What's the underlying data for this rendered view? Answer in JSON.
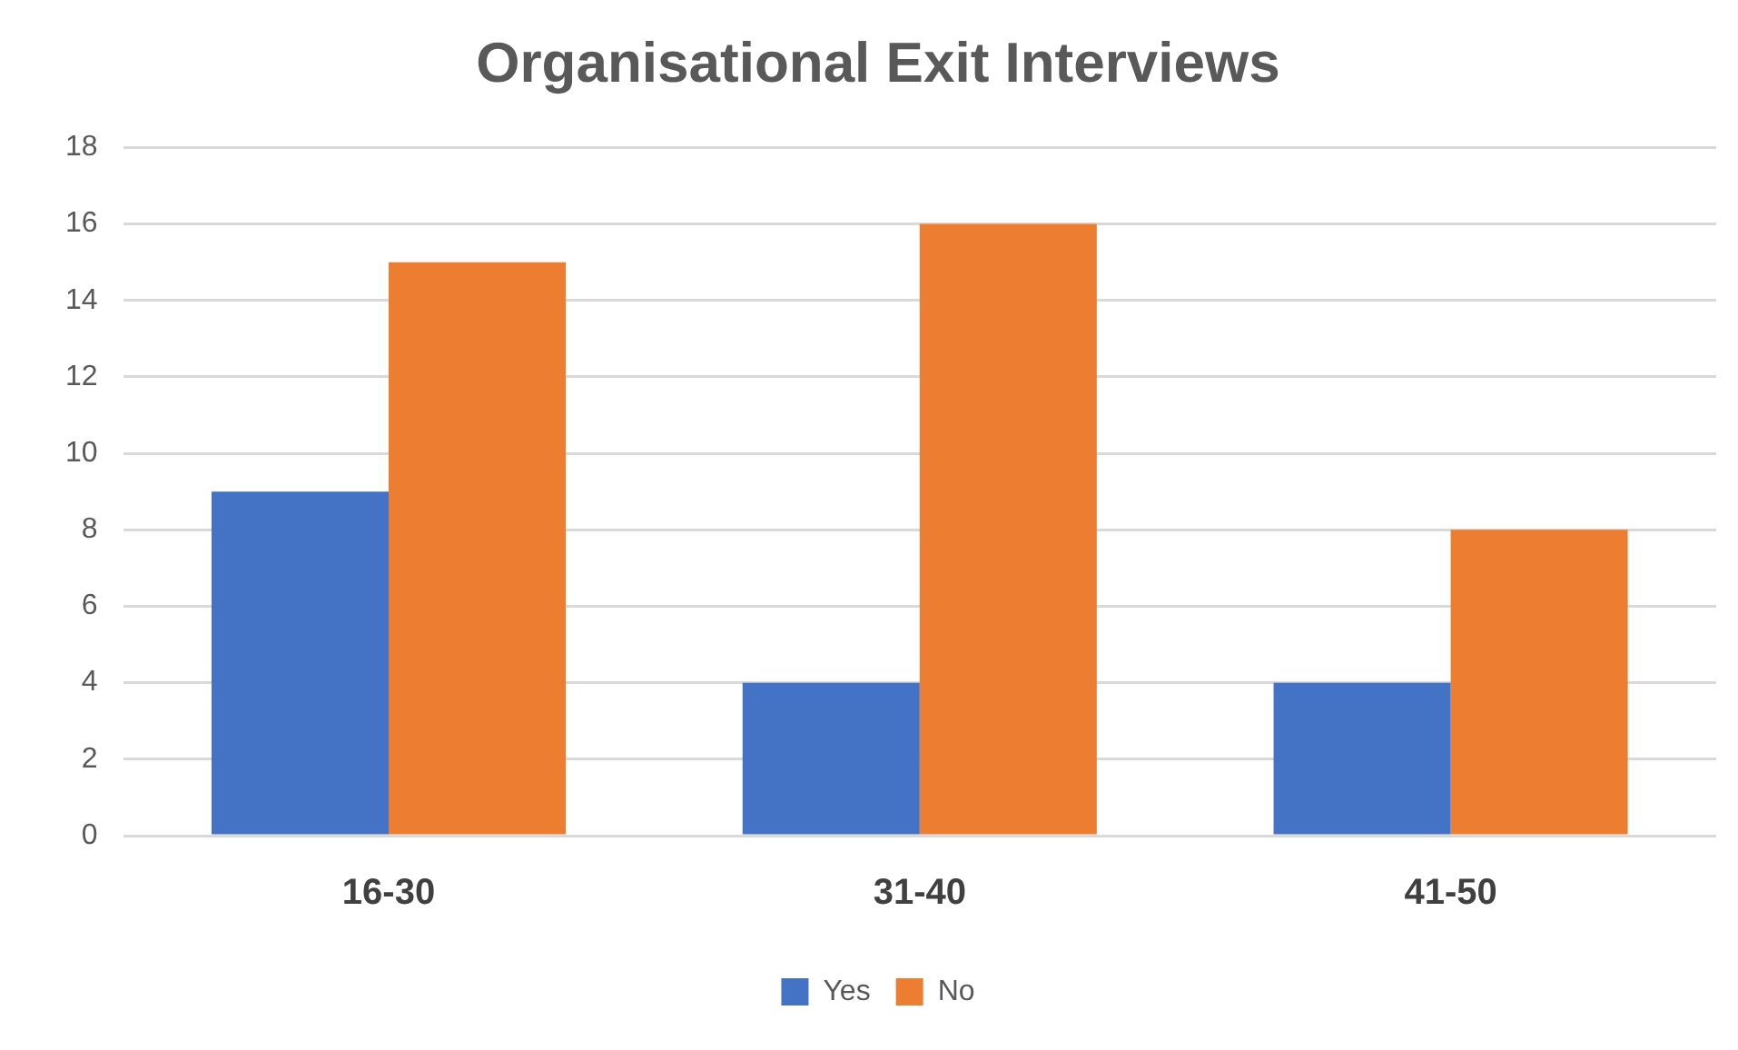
{
  "chart_data": {
    "type": "bar",
    "title": "Organisational Exit Interviews",
    "categories": [
      "16-30",
      "31-40",
      "41-50"
    ],
    "series": [
      {
        "name": "Yes",
        "color": "#4472c4",
        "values": [
          9,
          4,
          4
        ]
      },
      {
        "name": "No",
        "color": "#ed7d31",
        "values": [
          15,
          16,
          8
        ]
      }
    ],
    "ylim": [
      0,
      18
    ],
    "yticks": [
      0,
      2,
      4,
      6,
      8,
      10,
      12,
      14,
      16,
      18
    ],
    "grid": "y",
    "legend": "bottom"
  }
}
